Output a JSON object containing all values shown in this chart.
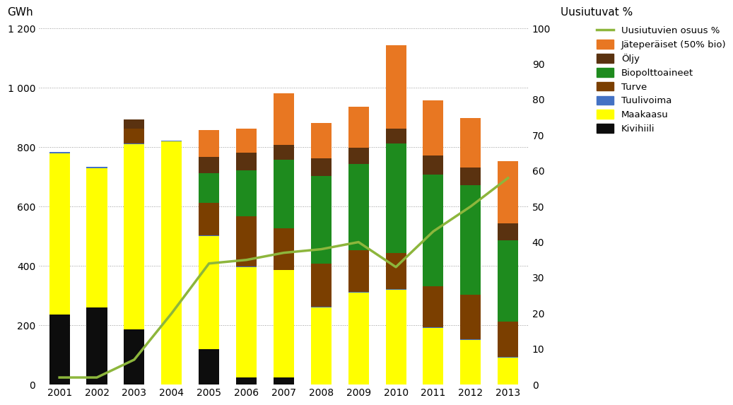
{
  "years": [
    2001,
    2002,
    2003,
    2004,
    2005,
    2006,
    2007,
    2008,
    2009,
    2010,
    2011,
    2012,
    2013
  ],
  "kivihiili": [
    235,
    260,
    185,
    0,
    120,
    25,
    25,
    0,
    0,
    0,
    0,
    0,
    0
  ],
  "maakaasu": [
    545,
    470,
    625,
    820,
    380,
    370,
    360,
    260,
    310,
    320,
    190,
    150,
    90
  ],
  "tuulivoima": [
    3,
    3,
    2,
    2,
    2,
    2,
    2,
    2,
    2,
    2,
    2,
    2,
    2
  ],
  "turve": [
    0,
    0,
    50,
    0,
    110,
    170,
    140,
    145,
    140,
    120,
    140,
    150,
    120
  ],
  "biopolttoaineet": [
    0,
    0,
    0,
    0,
    100,
    155,
    230,
    295,
    290,
    370,
    375,
    370,
    275
  ],
  "oljy": [
    0,
    0,
    30,
    0,
    55,
    60,
    50,
    60,
    55,
    50,
    65,
    60,
    55
  ],
  "jateperaiset": [
    0,
    0,
    0,
    0,
    90,
    80,
    175,
    120,
    140,
    280,
    185,
    165,
    210
  ],
  "renewables_pct": [
    2,
    2,
    7,
    20,
    34,
    35,
    37,
    38,
    40,
    33,
    43,
    50,
    58
  ],
  "colors": {
    "kivihiili": "#0d0d0d",
    "maakaasu": "#ffff00",
    "tuulivoima": "#4472c4",
    "turve": "#7b3f00",
    "biopolttoaineet": "#1e8b1e",
    "oljy": "#5a3210",
    "jateperaiset": "#e87722"
  },
  "title_left": "GWh",
  "title_right": "Uusiutuvat %",
  "ylim_left": [
    0,
    1200
  ],
  "ylim_right": [
    0,
    100
  ],
  "yticks_left": [
    0,
    200,
    400,
    600,
    800,
    1000,
    1200
  ],
  "yticks_right": [
    0,
    10,
    20,
    30,
    40,
    50,
    60,
    70,
    80,
    90,
    100
  ],
  "ytick_labels_left": [
    "0",
    "200",
    "400",
    "600",
    "800",
    "1 000",
    "1 200"
  ],
  "legend_labels": [
    "Uusiutuvien osuus %",
    "Jäteperäiset (50% bio)",
    "Öljy",
    "Biopolttoaineet",
    "Turve",
    "Tuulivoima",
    "Maakaasu",
    "Kivihiili"
  ],
  "line_color": "#8db63c",
  "background_color": "#ffffff",
  "bar_width": 0.55
}
